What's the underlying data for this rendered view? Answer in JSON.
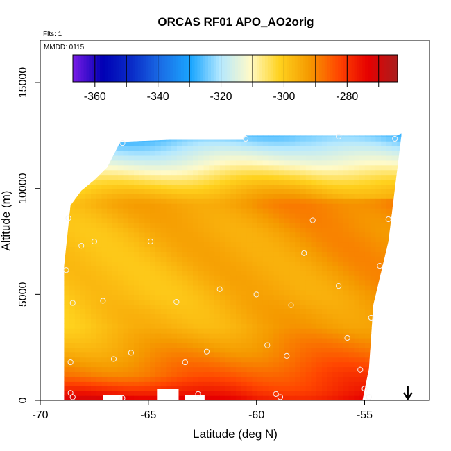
{
  "chart_data": {
    "type": "heatmap",
    "title": "ORCAS RF01 APO_AO2orig",
    "annotations": [
      "Flts: 1",
      "MMDD: 0115"
    ],
    "xlabel": "Latitude (deg N)",
    "ylabel": "Altitude (m)",
    "xlim": [
      -70,
      -52
    ],
    "ylim": [
      0,
      17000
    ],
    "x_ticks": [
      -70,
      -65,
      -60,
      -55
    ],
    "x_tick_labels": [
      "-70",
      "-65",
      "-60",
      "-55"
    ],
    "y_ticks": [
      0,
      5000,
      10000,
      15000
    ],
    "y_tick_labels": [
      "0",
      "5000",
      "10000",
      "15000"
    ],
    "colorbar": {
      "range": [
        -367,
        -264
      ],
      "ticks": [
        -360,
        -340,
        -320,
        -300,
        -280
      ],
      "tick_labels": [
        "-360",
        "-340",
        "-320",
        "-300",
        "-280"
      ],
      "colors": [
        "#7a1ce6",
        "#0000b4",
        "#0a2cc8",
        "#1a6ee6",
        "#1aa6ff",
        "#b4e8ff",
        "#fffac8",
        "#ffd21e",
        "#f59a00",
        "#ff4600",
        "#e60000",
        "#aa1e1e"
      ]
    },
    "field": {
      "lat_range": [
        -68.9,
        -53.1
      ],
      "alt_range": [
        0,
        12600
      ],
      "top_edge": [
        [
          -68.9,
          6300
        ],
        [
          -68.6,
          9200
        ],
        [
          -68.1,
          9900
        ],
        [
          -67.5,
          10400
        ],
        [
          -66.9,
          11000
        ],
        [
          -66.3,
          12200
        ],
        [
          -64.0,
          12300
        ],
        [
          -60.6,
          12300
        ],
        [
          -60.5,
          12500
        ],
        [
          -53.5,
          12500
        ],
        [
          -53.3,
          12600
        ]
      ],
      "right_edge": [
        [
          0,
          -55.1
        ],
        [
          1500,
          -54.8
        ],
        [
          4500,
          -54.6
        ],
        [
          7500,
          -53.9
        ],
        [
          10000,
          -53.6
        ],
        [
          12500,
          -53.3
        ]
      ],
      "gaps": [
        [
          -67.1,
          -66.2,
          0,
          250
        ],
        [
          -64.6,
          -63.6,
          0,
          550
        ],
        [
          -63.3,
          -62.4,
          0,
          240
        ]
      ],
      "bands": [
        {
          "alt": 0,
          "value": -278
        },
        {
          "alt": 500,
          "value": -282
        },
        {
          "alt": 1200,
          "value": -285
        },
        {
          "alt": 2200,
          "value": -290
        },
        {
          "alt": 3500,
          "value": -295
        },
        {
          "alt": 5000,
          "value": -296
        },
        {
          "alt": 6500,
          "value": -295
        },
        {
          "alt": 8000,
          "value": -294
        },
        {
          "alt": 9300,
          "value": -292
        },
        {
          "alt": 10200,
          "value": -300
        },
        {
          "alt": 11200,
          "value": -312
        },
        {
          "alt": 12500,
          "value": -325
        }
      ]
    },
    "sample_points": [
      [
        -68.7,
        8600
      ],
      [
        -68.1,
        7300
      ],
      [
        -67.5,
        7500
      ],
      [
        -68.8,
        6150
      ],
      [
        -68.5,
        4600
      ],
      [
        -67.1,
        4700
      ],
      [
        -68.6,
        1800
      ],
      [
        -66.6,
        1950
      ],
      [
        -65.8,
        2250
      ],
      [
        -68.6,
        350
      ],
      [
        -68.5,
        150
      ],
      [
        -66.2,
        100
      ],
      [
        -66.2,
        12150
      ],
      [
        -64.9,
        7500
      ],
      [
        -63.7,
        4650
      ],
      [
        -63.3,
        1800
      ],
      [
        -62.7,
        300
      ],
      [
        -62.3,
        2300
      ],
      [
        -61.7,
        5250
      ],
      [
        -60.5,
        12350
      ],
      [
        -60.0,
        5000
      ],
      [
        -59.5,
        2600
      ],
      [
        -59.1,
        300
      ],
      [
        -58.9,
        150
      ],
      [
        -58.6,
        2100
      ],
      [
        -58.4,
        4500
      ],
      [
        -57.8,
        6950
      ],
      [
        -57.4,
        8500
      ],
      [
        -56.2,
        12450
      ],
      [
        -56.2,
        5400
      ],
      [
        -55.8,
        2950
      ],
      [
        -55.2,
        1450
      ],
      [
        -55.0,
        550
      ],
      [
        -54.8,
        150
      ],
      [
        -54.7,
        3900
      ],
      [
        -54.3,
        6350
      ],
      [
        -53.9,
        8550
      ],
      [
        -53.6,
        12350
      ]
    ],
    "arrow": {
      "lat": -53.0,
      "direction": "down"
    },
    "grid": false,
    "legend": "colorbar inset top"
  }
}
